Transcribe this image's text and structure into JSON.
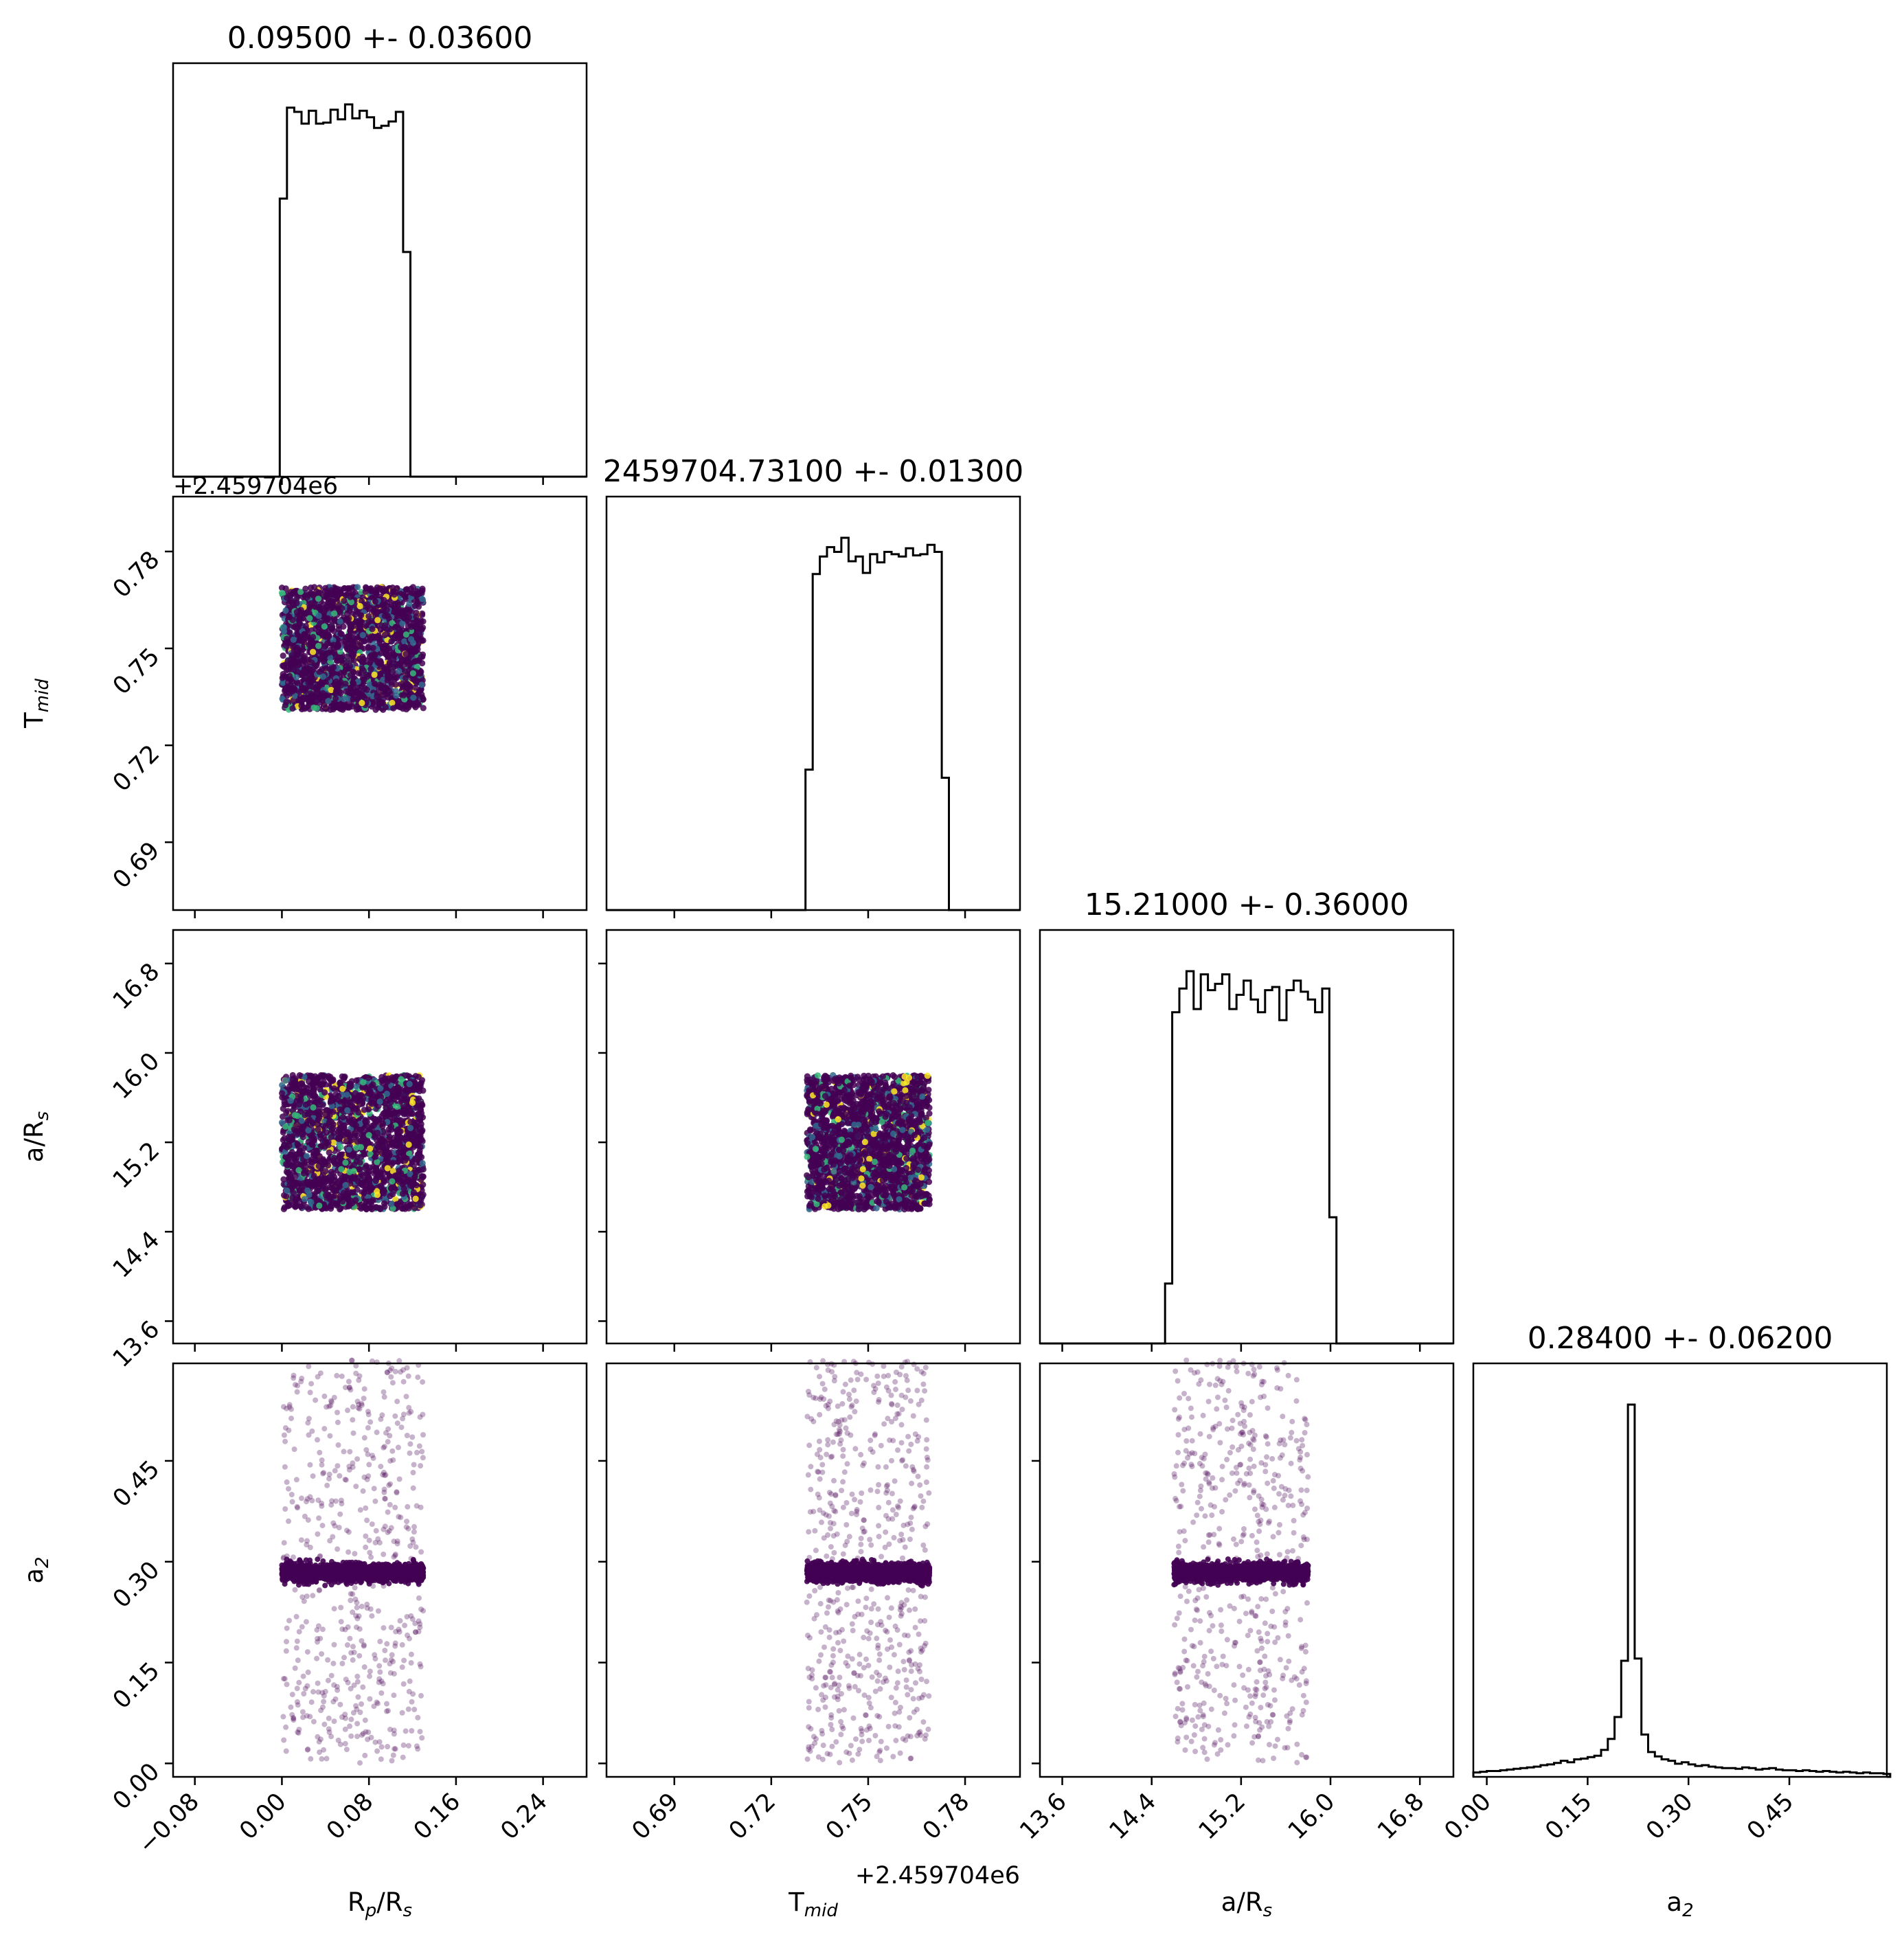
{
  "chart_data": {
    "type": "corner",
    "parameters": [
      {
        "name": "Rp/Rs",
        "label_main": "R",
        "label_sub": "p",
        "label_tail": "/R",
        "label_sub2": "s",
        "title": "0.09500 +- 0.03600",
        "range": [
          -0.1,
          0.28
        ],
        "ticks": [
          "−0.08",
          "0.00",
          "0.08",
          "0.16",
          "0.24"
        ],
        "tick_values": [
          -0.08,
          0.0,
          0.08,
          0.16,
          0.24
        ],
        "offset_label": "",
        "sample_range": [
          0.0,
          0.13
        ],
        "hist": {
          "edges_start": -0.002,
          "bin_width": 0.00667,
          "values": [
            260,
            345,
            341,
            330,
            342,
            330,
            331,
            343,
            334,
            348,
            335,
            342,
            336,
            326,
            328,
            332,
            341,
            210,
            0
          ]
        }
      },
      {
        "name": "Tmid",
        "label_main": "T",
        "label_sub": "mid",
        "label_tail": "",
        "label_sub2": "",
        "title": "2459704.73100 +- 0.01300",
        "range": [
          0.669,
          0.797
        ],
        "ticks": [
          "0.69",
          "0.72",
          "0.75",
          "0.78"
        ],
        "tick_values": [
          0.69,
          0.72,
          0.75,
          0.78
        ],
        "offset_label": "+2.459704e6",
        "sample_range": [
          0.731,
          0.769
        ],
        "hist": {
          "edges_start": 0.7306,
          "bin_width": 0.00222,
          "values": [
            120,
            287,
            302,
            310,
            306,
            318,
            298,
            302,
            288,
            304,
            297,
            306,
            304,
            302,
            309,
            303,
            304,
            312,
            306,
            113,
            0
          ]
        }
      },
      {
        "name": "a/Rs",
        "label_main": "a/R",
        "label_sub": "s",
        "label_tail": "",
        "label_sub2": "",
        "title": "15.21000 +- 0.36000",
        "range": [
          13.4,
          17.1
        ],
        "ticks": [
          "13.6",
          "14.4",
          "15.2",
          "16.0",
          "16.8"
        ],
        "tick_values": [
          13.6,
          14.4,
          15.2,
          16.0,
          16.8
        ],
        "offset_label": "",
        "sample_range": [
          14.6,
          15.8
        ],
        "hist": {
          "edges_start": 14.52,
          "bin_width": 0.0639,
          "values": [
            38,
            210,
            225,
            236,
            212,
            234,
            224,
            228,
            234,
            212,
            221,
            230,
            218,
            210,
            224,
            226,
            205,
            224,
            230,
            223,
            218,
            210,
            225,
            80
          ]
        }
      },
      {
        "name": "a2",
        "label_main": "a",
        "label_sub": "2",
        "label_tail": "",
        "label_sub2": "",
        "title": "0.28400 +- 0.06200",
        "range": [
          -0.02,
          0.595
        ],
        "ticks": [
          "0.00",
          "0.15",
          "0.30",
          "0.45"
        ],
        "tick_values": [
          0.0,
          0.15,
          0.3,
          0.45
        ],
        "offset_label": "",
        "sample_range": [
          0.0,
          0.6
        ],
        "hist": {
          "edges_start": -0.02,
          "bin_width": 0.01,
          "values": [
            6,
            7,
            8,
            8,
            9,
            10,
            11,
            12,
            13,
            14,
            16,
            17,
            19,
            22,
            20,
            24,
            25,
            27,
            29,
            37,
            52,
            82,
            159,
            510,
            162,
            58,
            34,
            28,
            24,
            22,
            18,
            20,
            17,
            15,
            16,
            14,
            13,
            12,
            12,
            11,
            13,
            12,
            10,
            11,
            12,
            10,
            9,
            9,
            8,
            9,
            8,
            7,
            8,
            7,
            6,
            7,
            6,
            5,
            6,
            5,
            5,
            4
          ]
        }
      }
    ],
    "scatter_colormap": [
      "#440154",
      "#31688e",
      "#35b779",
      "#fde725"
    ],
    "scatter_main_color": "#440154"
  }
}
